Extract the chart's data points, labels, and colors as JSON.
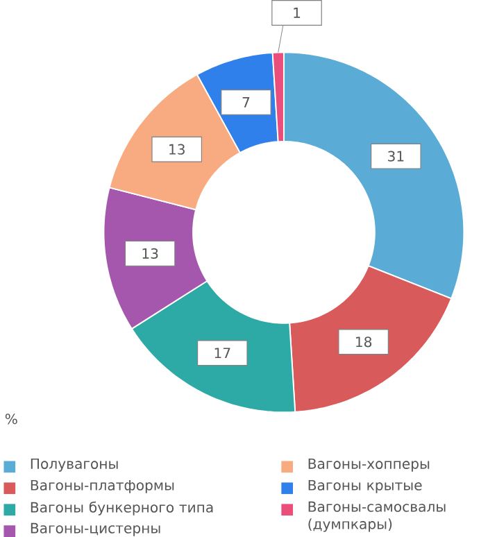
{
  "chart_data": {
    "type": "donut",
    "categories": [
      "Полувагоны",
      "Вагоны-платформы",
      "Вагоны бункерного типа",
      "Вагоны-цистерны",
      "Вагоны-хопперы",
      "Вагоны крытые",
      "Вагоны-самосвалы (думпкары)"
    ],
    "values": [
      31,
      18,
      17,
      13,
      13,
      7,
      1
    ],
    "colors": [
      "#5aacd6",
      "#d95a5a",
      "#2eaaa6",
      "#a556ad",
      "#f8aa80",
      "#2f80ea",
      "#ea4f7c"
    ],
    "legend_title": "%",
    "legend": "bottom",
    "data_labels": true
  }
}
